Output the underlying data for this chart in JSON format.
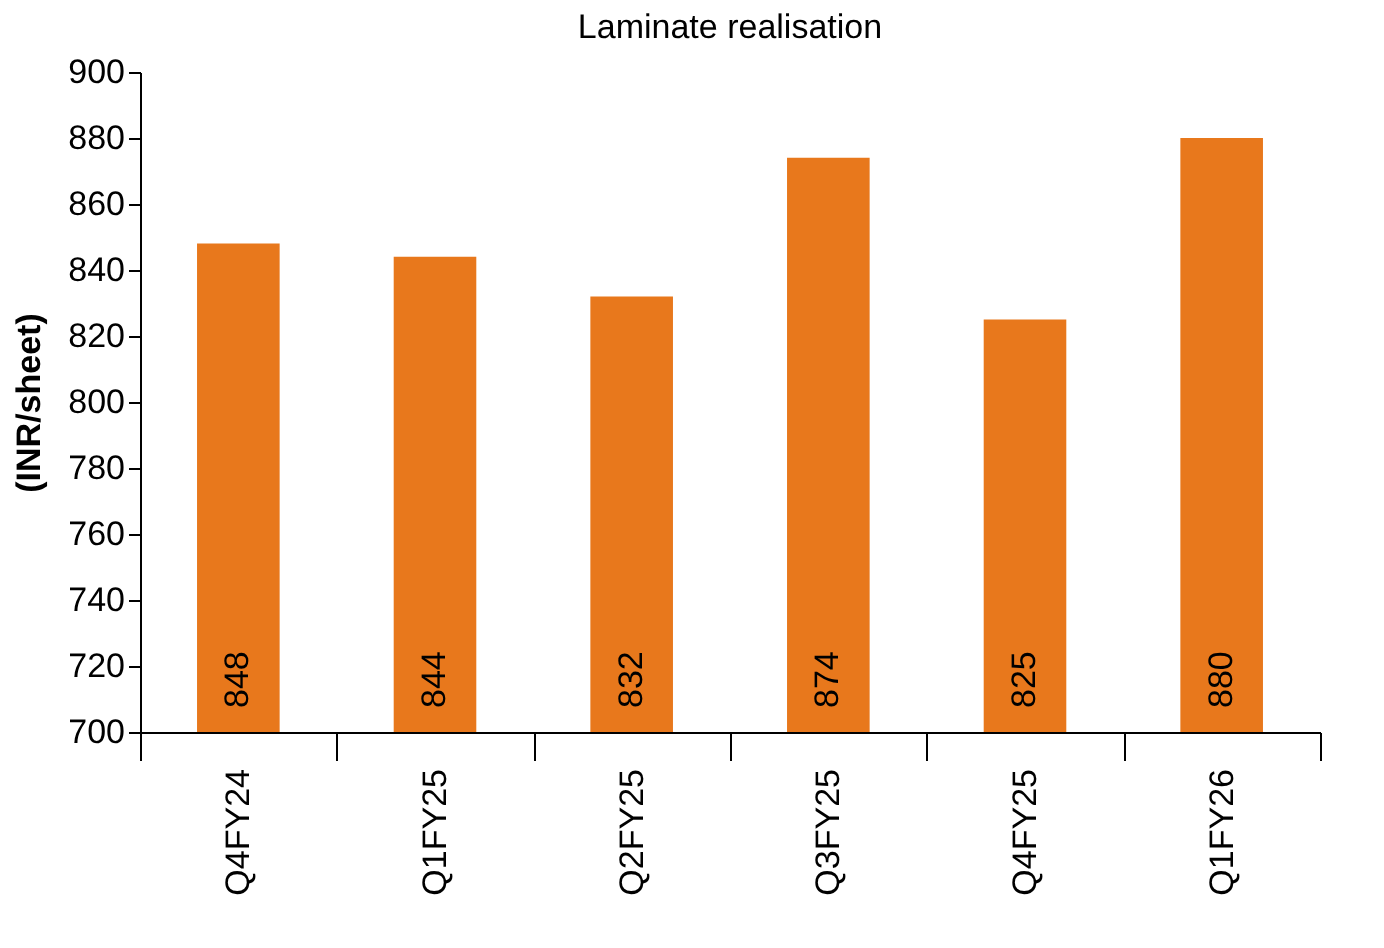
{
  "chart_data": {
    "type": "bar",
    "title": "Laminate realisation",
    "ylabel": "(INR/sheet)",
    "categories": [
      "Q4FY24",
      "Q1FY25",
      "Q2FY25",
      "Q3FY25",
      "Q4FY25",
      "Q1FY26"
    ],
    "values": [
      848,
      844,
      832,
      874,
      825,
      880
    ],
    "color": "#e8781c",
    "ylim": [
      700,
      900
    ],
    "yticks": [
      700,
      720,
      740,
      760,
      780,
      800,
      820,
      840,
      860,
      880,
      900
    ],
    "grid": false,
    "data_labels": true
  }
}
